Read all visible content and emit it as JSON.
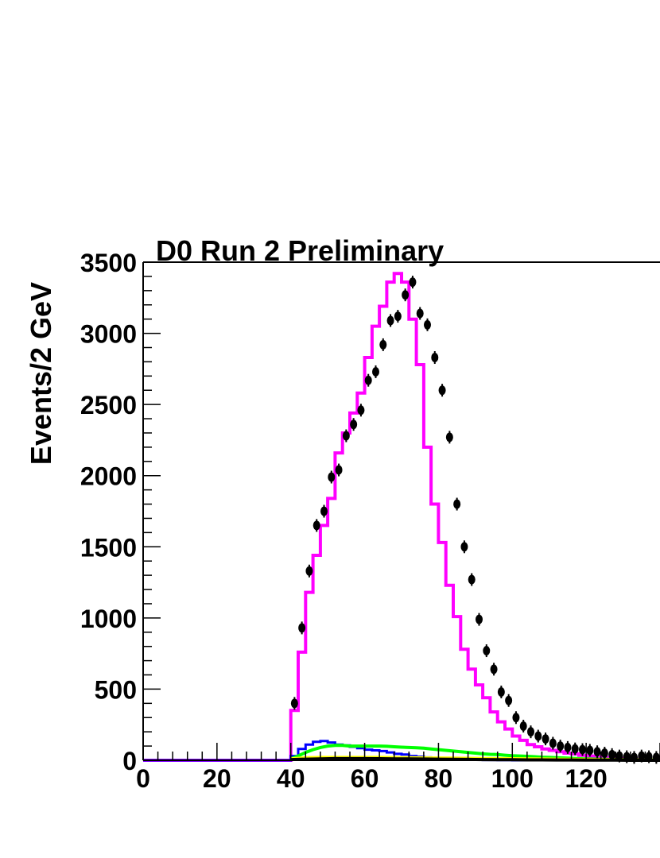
{
  "chart_data": {
    "type": "line",
    "title": "D0 Run 2 Preliminary",
    "xlabel": "",
    "ylabel": "Events/2 GeV",
    "xlim": [
      0,
      140
    ],
    "ylim": [
      0,
      3500
    ],
    "x_ticks": [
      0,
      20,
      40,
      60,
      80,
      100,
      120
    ],
    "x_tick_labels": [
      "0",
      "20",
      "40",
      "60",
      "80",
      "100",
      "120"
    ],
    "y_ticks": [
      0,
      500,
      1000,
      1500,
      2000,
      2500,
      3000,
      3500
    ],
    "y_tick_labels": [
      "0",
      "500",
      "1000",
      "1500",
      "2000",
      "2500",
      "3000",
      "3500"
    ],
    "grid": false,
    "series": [
      {
        "style": "step",
        "color": "#ff00ff",
        "bin_width": 2,
        "x_start": 0,
        "values": [
          0,
          0,
          0,
          0,
          0,
          0,
          0,
          0,
          0,
          0,
          0,
          0,
          0,
          0,
          0,
          0,
          0,
          0,
          0,
          0,
          350,
          760,
          1180,
          1440,
          1650,
          1840,
          2160,
          2300,
          2440,
          2580,
          2830,
          3050,
          3190,
          3360,
          3420,
          3360,
          3100,
          2780,
          2200,
          1800,
          1530,
          1230,
          1010,
          780,
          640,
          530,
          440,
          340,
          270,
          220,
          170,
          140,
          110,
          95,
          80,
          70,
          60,
          50,
          45,
          35,
          30,
          25,
          20,
          15,
          12,
          10,
          8,
          5,
          3,
          2
        ]
      },
      {
        "style": "step",
        "color": "#0000ff",
        "bin_width": 2,
        "x_start": 0,
        "values": [
          0,
          0,
          0,
          0,
          0,
          0,
          0,
          0,
          0,
          0,
          0,
          0,
          0,
          0,
          0,
          0,
          0,
          0,
          0,
          0,
          30,
          80,
          110,
          130,
          135,
          125,
          110,
          105,
          95,
          85,
          75,
          70,
          65,
          55,
          45,
          40,
          30,
          25,
          20,
          15,
          12,
          10,
          8,
          6,
          4,
          3,
          2,
          2,
          1,
          1,
          0,
          0,
          0,
          0,
          0,
          0,
          0,
          0,
          0,
          0,
          0,
          0,
          0,
          0,
          0,
          0,
          0,
          0,
          0,
          0
        ]
      },
      {
        "style": "line",
        "color": "#00ff00",
        "x": [
          40,
          42,
          44,
          46,
          48,
          50,
          52,
          54,
          56,
          58,
          60,
          62,
          64,
          66,
          68,
          70,
          72,
          74,
          76,
          78,
          80,
          82,
          84,
          86,
          88,
          90,
          92,
          94,
          96,
          98,
          100,
          102,
          104,
          106,
          108,
          110,
          112,
          114,
          116,
          118,
          120,
          124,
          128,
          132,
          136,
          140
        ],
        "values": [
          10,
          30,
          55,
          75,
          90,
          100,
          105,
          105,
          100,
          100,
          100,
          100,
          100,
          98,
          95,
          92,
          90,
          88,
          85,
          80,
          75,
          70,
          65,
          60,
          55,
          50,
          45,
          42,
          40,
          36,
          32,
          30,
          28,
          25,
          22,
          20,
          18,
          16,
          14,
          12,
          10,
          8,
          6,
          5,
          4,
          3
        ]
      },
      {
        "style": "line",
        "color": "#ffff00",
        "x": [
          40,
          44,
          48,
          52,
          56,
          60,
          64,
          68,
          72,
          76,
          80,
          84,
          88,
          92,
          96,
          100,
          104,
          108,
          112,
          116,
          120,
          124,
          128,
          132,
          136,
          140
        ],
        "values": [
          10,
          18,
          20,
          20,
          20,
          20,
          20,
          19,
          18,
          17,
          16,
          15,
          14,
          13,
          12,
          11,
          10,
          9,
          8,
          7,
          6,
          5,
          4,
          3,
          2,
          2
        ]
      },
      {
        "style": "line",
        "color": "#000000",
        "x": [
          40,
          44,
          48,
          52,
          56,
          60,
          64,
          68,
          72,
          76,
          80,
          84,
          88,
          92,
          96,
          100,
          104,
          108,
          112,
          116,
          120,
          124,
          128,
          132,
          136,
          140
        ],
        "values": [
          5,
          8,
          10,
          12,
          12,
          12,
          11,
          10,
          10,
          9,
          8,
          7,
          6,
          5,
          4,
          4,
          3,
          3,
          2,
          2,
          1,
          1,
          1,
          0,
          0,
          0
        ]
      },
      {
        "style": "points",
        "color": "#000000",
        "x": [
          41,
          43,
          45,
          47,
          49,
          51,
          53,
          55,
          57,
          59,
          61,
          63,
          65,
          67,
          69,
          71,
          73,
          75,
          77,
          79,
          81,
          83,
          85,
          87,
          89,
          91,
          93,
          95,
          97,
          99,
          101,
          103,
          105,
          107,
          109,
          111,
          113,
          115,
          117,
          119,
          121,
          123,
          125,
          127,
          129,
          131,
          133,
          135,
          137,
          139
        ],
        "values": [
          400,
          930,
          1330,
          1650,
          1750,
          1990,
          2040,
          2280,
          2360,
          2460,
          2670,
          2730,
          2920,
          3090,
          3120,
          3270,
          3360,
          3140,
          3060,
          2830,
          2600,
          2270,
          1800,
          1500,
          1270,
          990,
          770,
          640,
          480,
          420,
          300,
          240,
          200,
          170,
          150,
          120,
          100,
          90,
          80,
          75,
          70,
          60,
          50,
          40,
          30,
          25,
          20,
          30,
          25,
          20
        ]
      }
    ]
  }
}
